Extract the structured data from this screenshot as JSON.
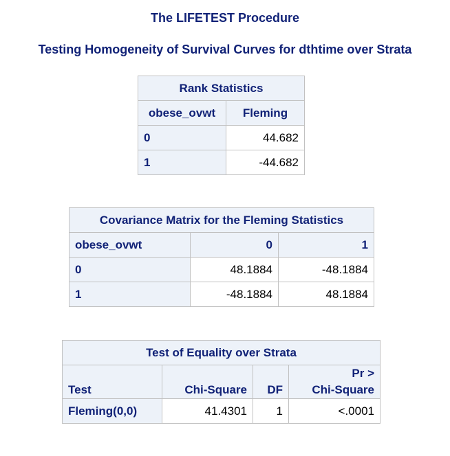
{
  "procedure_title": "The LIFETEST Procedure",
  "subtitle": "Testing Homogeneity of Survival Curves for dthtime over Strata",
  "rank_statistics": {
    "caption": "Rank Statistics",
    "columns": [
      "obese_ovwt",
      "Fleming"
    ],
    "rows": [
      {
        "group": "0",
        "fleming": "44.682"
      },
      {
        "group": "1",
        "fleming": "-44.682"
      }
    ]
  },
  "covariance_matrix": {
    "caption": "Covariance Matrix for the Fleming Statistics",
    "row_header": "obese_ovwt",
    "columns": [
      "0",
      "1"
    ],
    "rows": [
      {
        "group": "0",
        "values": [
          "48.1884",
          "-48.1884"
        ]
      },
      {
        "group": "1",
        "values": [
          "-48.1884",
          "48.1884"
        ]
      }
    ]
  },
  "test_equality": {
    "caption": "Test of Equality over Strata",
    "headers": {
      "test": "Test",
      "chi_square": "Chi-Square",
      "df": "DF",
      "pr_line1": "Pr >",
      "pr_line2": "Chi-Square"
    },
    "rows": [
      {
        "test": "Fleming(0,0)",
        "chi_square": "41.4301",
        "df": "1",
        "p": "<.0001"
      }
    ]
  }
}
